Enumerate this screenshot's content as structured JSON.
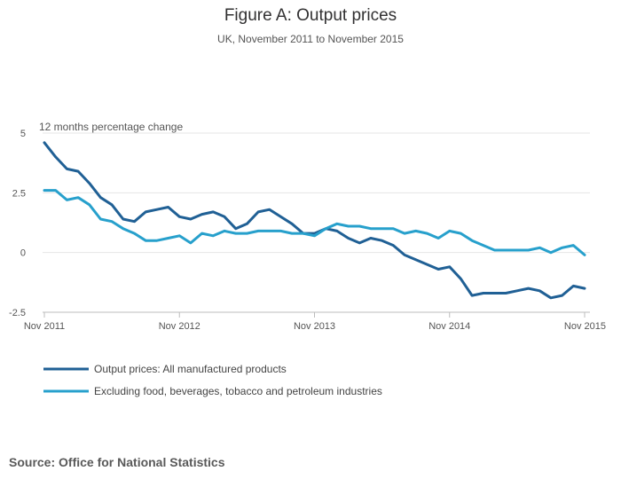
{
  "title": "Figure A: Output prices",
  "subtitle": "UK, November 2011 to November 2015",
  "source": "Source: Office for National Statistics",
  "chart_data": {
    "type": "line",
    "title": "Figure A: Output prices",
    "subtitle": "UK, November 2011 to November 2015",
    "ylabel": "12 months percentage change",
    "xlabel": "",
    "ylim": [
      -2.5,
      5
    ],
    "yticks": [
      -2.5,
      0,
      2.5,
      5
    ],
    "ytick_labels": [
      "-2.5",
      "0",
      "2.5",
      "5"
    ],
    "xticks": [
      0,
      12,
      24,
      36,
      48
    ],
    "xtick_labels": [
      "Nov 2011",
      "Nov 2012",
      "Nov 2013",
      "Nov 2014",
      "Nov 2015"
    ],
    "grid": "horizontal",
    "legend_position": "bottom-left",
    "series": [
      {
        "name": "Output prices: All manufactured products",
        "color": "#206095",
        "values": [
          4.6,
          4.0,
          3.5,
          3.4,
          2.9,
          2.3,
          2.0,
          1.4,
          1.3,
          1.7,
          1.8,
          1.9,
          1.5,
          1.4,
          1.6,
          1.7,
          1.5,
          1.0,
          1.2,
          1.7,
          1.8,
          1.5,
          1.2,
          0.8,
          0.8,
          1.0,
          0.9,
          0.6,
          0.4,
          0.6,
          0.5,
          0.3,
          -0.1,
          -0.3,
          -0.5,
          -0.7,
          -0.6,
          -1.1,
          -1.8,
          -1.7,
          -1.7,
          -1.7,
          -1.6,
          -1.5,
          -1.6,
          -1.9,
          -1.8,
          -1.4,
          -1.5
        ]
      },
      {
        "name": "Excluding food, beverages, tobacco and petroleum industries",
        "color": "#27A0CC",
        "values": [
          2.6,
          2.6,
          2.2,
          2.3,
          2.0,
          1.4,
          1.3,
          1.0,
          0.8,
          0.5,
          0.5,
          0.6,
          0.7,
          0.4,
          0.8,
          0.7,
          0.9,
          0.8,
          0.8,
          0.9,
          0.9,
          0.9,
          0.8,
          0.8,
          0.7,
          1.0,
          1.2,
          1.1,
          1.1,
          1.0,
          1.0,
          1.0,
          0.8,
          0.9,
          0.8,
          0.6,
          0.9,
          0.8,
          0.5,
          0.3,
          0.1,
          0.1,
          0.1,
          0.1,
          0.2,
          0.0,
          0.2,
          0.3,
          -0.1
        ]
      }
    ]
  }
}
